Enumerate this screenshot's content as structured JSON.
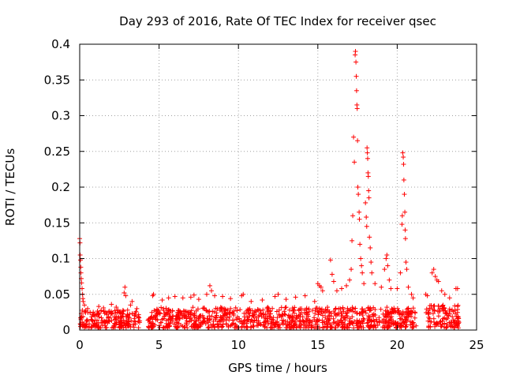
{
  "chart_data": {
    "type": "scatter",
    "title": "Day 293 of 2016, Rate Of TEC Index for receiver qsec",
    "xlabel": "GPS time / hours",
    "ylabel": "ROTI / TECUs",
    "xlim": [
      0,
      25
    ],
    "ylim": [
      0,
      0.4
    ],
    "xticks": [
      0,
      5,
      10,
      15,
      20,
      25
    ],
    "xtick_labels": [
      "0",
      "5",
      "10",
      "15",
      "20",
      "25"
    ],
    "yticks": [
      0,
      0.05,
      0.1,
      0.15,
      0.2,
      0.25,
      0.3,
      0.35,
      0.4
    ],
    "ytick_labels": [
      "0",
      "0.05",
      "0.1",
      "0.15",
      "0.2",
      "0.25",
      "0.3",
      "0.35",
      "0.4"
    ],
    "grid": true,
    "marker": "+",
    "color": "#ff0000",
    "series": [
      {
        "name": "ROTI",
        "points": [
          [
            0.0,
            0.128
          ],
          [
            0.02,
            0.122
          ],
          [
            0.03,
            0.105
          ],
          [
            0.05,
            0.098
          ],
          [
            0.07,
            0.088
          ],
          [
            0.08,
            0.08
          ],
          [
            0.1,
            0.072
          ],
          [
            0.12,
            0.066
          ],
          [
            0.15,
            0.058
          ],
          [
            0.18,
            0.05
          ],
          [
            0.2,
            0.044
          ],
          [
            0.22,
            0.04
          ],
          [
            0.3,
            0.035
          ],
          [
            0.5,
            0.03
          ],
          [
            1.2,
            0.033
          ],
          [
            1.5,
            0.031
          ],
          [
            2.0,
            0.036
          ],
          [
            2.3,
            0.032
          ],
          [
            2.8,
            0.052
          ],
          [
            2.85,
            0.06
          ],
          [
            2.9,
            0.048
          ],
          [
            3.2,
            0.035
          ],
          [
            3.3,
            0.04
          ],
          [
            3.6,
            0.03
          ],
          [
            4.6,
            0.048
          ],
          [
            4.65,
            0.05
          ],
          [
            5.2,
            0.042
          ],
          [
            5.6,
            0.045
          ],
          [
            6.0,
            0.047
          ],
          [
            6.5,
            0.045
          ],
          [
            7.0,
            0.046
          ],
          [
            7.2,
            0.049
          ],
          [
            7.5,
            0.043
          ],
          [
            8.0,
            0.05
          ],
          [
            8.2,
            0.062
          ],
          [
            8.3,
            0.055
          ],
          [
            8.5,
            0.048
          ],
          [
            9.0,
            0.047
          ],
          [
            9.5,
            0.044
          ],
          [
            10.2,
            0.048
          ],
          [
            10.3,
            0.05
          ],
          [
            10.8,
            0.04
          ],
          [
            11.5,
            0.042
          ],
          [
            12.3,
            0.047
          ],
          [
            12.5,
            0.05
          ],
          [
            13.0,
            0.043
          ],
          [
            13.6,
            0.046
          ],
          [
            14.2,
            0.048
          ],
          [
            14.8,
            0.04
          ],
          [
            15.0,
            0.065
          ],
          [
            15.1,
            0.062
          ],
          [
            15.2,
            0.06
          ],
          [
            15.3,
            0.055
          ],
          [
            15.8,
            0.098
          ],
          [
            15.9,
            0.078
          ],
          [
            16.0,
            0.068
          ],
          [
            16.2,
            0.055
          ],
          [
            16.5,
            0.058
          ],
          [
            16.8,
            0.062
          ],
          [
            17.0,
            0.07
          ],
          [
            17.1,
            0.085
          ],
          [
            17.15,
            0.125
          ],
          [
            17.2,
            0.16
          ],
          [
            17.25,
            0.27
          ],
          [
            17.3,
            0.235
          ],
          [
            17.35,
            0.385
          ],
          [
            17.37,
            0.39
          ],
          [
            17.4,
            0.375
          ],
          [
            17.42,
            0.355
          ],
          [
            17.44,
            0.335
          ],
          [
            17.46,
            0.315
          ],
          [
            17.48,
            0.31
          ],
          [
            17.5,
            0.265
          ],
          [
            17.52,
            0.2
          ],
          [
            17.55,
            0.19
          ],
          [
            17.6,
            0.165
          ],
          [
            17.62,
            0.155
          ],
          [
            17.65,
            0.12
          ],
          [
            17.7,
            0.1
          ],
          [
            17.75,
            0.09
          ],
          [
            17.8,
            0.08
          ],
          [
            17.9,
            0.065
          ],
          [
            18.0,
            0.178
          ],
          [
            18.05,
            0.158
          ],
          [
            18.08,
            0.145
          ],
          [
            18.1,
            0.255
          ],
          [
            18.12,
            0.248
          ],
          [
            18.14,
            0.24
          ],
          [
            18.16,
            0.22
          ],
          [
            18.18,
            0.215
          ],
          [
            18.2,
            0.195
          ],
          [
            18.22,
            0.185
          ],
          [
            18.25,
            0.13
          ],
          [
            18.3,
            0.115
          ],
          [
            18.35,
            0.095
          ],
          [
            18.4,
            0.08
          ],
          [
            18.6,
            0.065
          ],
          [
            19.0,
            0.06
          ],
          [
            19.2,
            0.085
          ],
          [
            19.3,
            0.1
          ],
          [
            19.35,
            0.105
          ],
          [
            19.4,
            0.09
          ],
          [
            19.5,
            0.07
          ],
          [
            19.6,
            0.058
          ],
          [
            20.0,
            0.058
          ],
          [
            20.2,
            0.08
          ],
          [
            20.3,
            0.148
          ],
          [
            20.32,
            0.16
          ],
          [
            20.35,
            0.248
          ],
          [
            20.38,
            0.242
          ],
          [
            20.4,
            0.232
          ],
          [
            20.42,
            0.21
          ],
          [
            20.45,
            0.19
          ],
          [
            20.48,
            0.165
          ],
          [
            20.5,
            0.14
          ],
          [
            20.52,
            0.128
          ],
          [
            20.55,
            0.095
          ],
          [
            20.6,
            0.085
          ],
          [
            20.7,
            0.06
          ],
          [
            20.9,
            0.05
          ],
          [
            21.0,
            0.045
          ],
          [
            21.8,
            0.05
          ],
          [
            21.9,
            0.048
          ],
          [
            22.2,
            0.08
          ],
          [
            22.3,
            0.085
          ],
          [
            22.4,
            0.075
          ],
          [
            22.5,
            0.07
          ],
          [
            22.6,
            0.068
          ],
          [
            22.8,
            0.055
          ],
          [
            23.0,
            0.05
          ],
          [
            23.3,
            0.045
          ],
          [
            23.7,
            0.058
          ],
          [
            23.8,
            0.058
          ]
        ]
      }
    ],
    "dense_bands": [
      {
        "x": [
          0.0,
          3.8
        ],
        "y_low": 0.003,
        "y_high": 0.028
      },
      {
        "x": [
          4.3,
          21.2
        ],
        "y_low": 0.003,
        "y_high": 0.032
      },
      {
        "x": [
          21.8,
          23.9
        ],
        "y_low": 0.003,
        "y_high": 0.035
      }
    ]
  }
}
